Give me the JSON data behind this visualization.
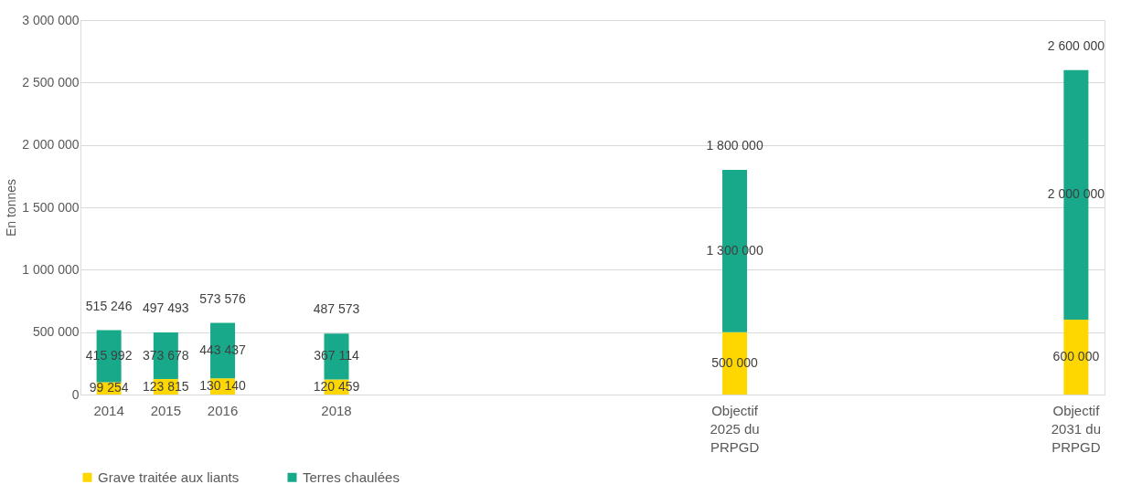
{
  "chart_data": {
    "type": "bar",
    "stacked": true,
    "ylabel": "En tonnes",
    "categories": [
      "2014",
      "2015",
      "2016",
      null,
      "2018",
      null,
      null,
      null,
      null,
      null,
      null,
      "Objectif 2025 du PRPGD",
      null,
      null,
      null,
      null,
      null,
      "Objectif 2031 du PRPGD"
    ],
    "series": [
      {
        "name": "Grave traitée aux liants",
        "color": "#ffd700",
        "values": [
          99254,
          123815,
          130140,
          null,
          120459,
          null,
          null,
          null,
          null,
          null,
          null,
          500000,
          null,
          null,
          null,
          null,
          null,
          600000
        ],
        "value_labels": [
          "99 254",
          "123 815",
          "130 140",
          null,
          "120 459",
          null,
          null,
          null,
          null,
          null,
          null,
          "500 000",
          null,
          null,
          null,
          null,
          null,
          "600 000"
        ]
      },
      {
        "name": "Terres chaulées",
        "color": "#17a98a",
        "values": [
          415992,
          373678,
          443437,
          null,
          367114,
          null,
          null,
          null,
          null,
          null,
          null,
          1300000,
          null,
          null,
          null,
          null,
          null,
          2000000
        ],
        "value_labels": [
          "415 992",
          "373 678",
          "443 437",
          null,
          "367 114",
          null,
          null,
          null,
          null,
          null,
          null,
          "1 300 000",
          null,
          null,
          null,
          null,
          null,
          "2 000 000"
        ]
      }
    ],
    "totals": [
      "515 246",
      "497 493",
      "573 576",
      null,
      "487 573",
      null,
      null,
      null,
      null,
      null,
      null,
      "1 800 000",
      null,
      null,
      null,
      null,
      null,
      "2 600 000"
    ],
    "ylim": [
      0,
      3000000
    ],
    "yticks": [
      {
        "value": 0,
        "label": "0"
      },
      {
        "value": 500000,
        "label": "500 000"
      },
      {
        "value": 1000000,
        "label": "1 000 000"
      },
      {
        "value": 1500000,
        "label": "1 500 000"
      },
      {
        "value": 2000000,
        "label": "2 000 000"
      },
      {
        "value": 2500000,
        "label": "2 500 000"
      },
      {
        "value": 3000000,
        "label": "3 000 000"
      }
    ],
    "grid": "y",
    "legend": "bottom"
  }
}
